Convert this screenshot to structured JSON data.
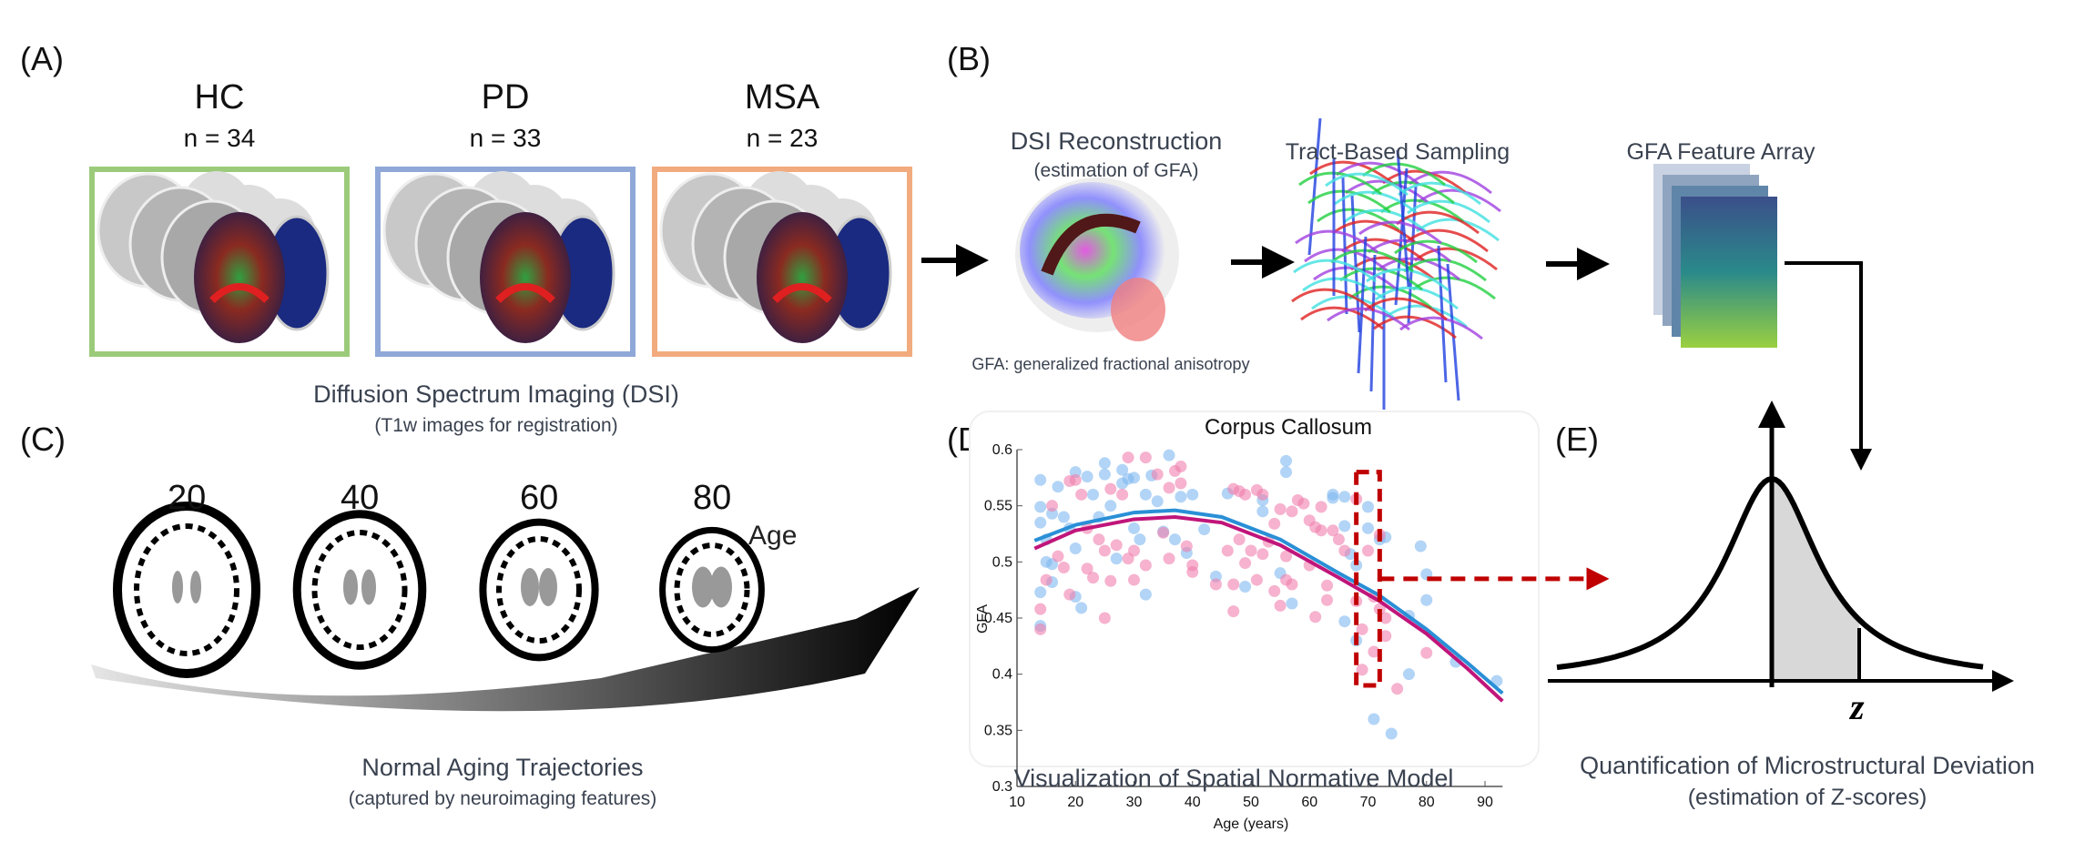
{
  "panel_labels": [
    "(A)",
    "(B)",
    "(C)",
    "(D)",
    "(E)"
  ],
  "panel_a": {
    "groups": [
      {
        "name": "HC",
        "n": "n = 34",
        "color": "#9bcb7a"
      },
      {
        "name": "PD",
        "n": "n = 33",
        "color": "#8fa8d8"
      },
      {
        "name": "MSA",
        "n": "n = 23",
        "color": "#f2ab7e"
      }
    ],
    "caption": "Diffusion Spectrum Imaging (DSI)",
    "subcaption": "(T1w images for registration)"
  },
  "panel_b": {
    "steps": [
      {
        "title": "DSI Reconstruction",
        "subtitle": "(estimation of GFA)"
      },
      {
        "title": "Tract-Based Sampling"
      },
      {
        "title": "GFA Feature Array"
      }
    ],
    "note": "GFA: generalized  fractional  anisotropy"
  },
  "panel_c": {
    "ages": [
      "20",
      "40",
      "60",
      "80"
    ],
    "age_label": "Age",
    "caption": "Normal Aging Trajectories",
    "subcaption": "(captured by neuroimaging features)"
  },
  "panel_d": {
    "caption": "Visualization of Spatial Normative Model",
    "highlight_color": "#c00000"
  },
  "panel_e": {
    "caption": "Quantification of Microstructural Deviation",
    "subcaption": "(estimation of Z-scores)",
    "z_label": "z"
  },
  "chart_data": {
    "type": "scatter",
    "title": "Corpus Callosum",
    "xlabel": "Age (years)",
    "ylabel": "GFA",
    "xlim": [
      10,
      93
    ],
    "ylim": [
      0.3,
      0.6
    ],
    "xticks": [
      10,
      20,
      30,
      40,
      50,
      60,
      70,
      80,
      90
    ],
    "yticks": [
      0.3,
      0.35,
      0.4,
      0.45,
      0.5,
      0.55,
      0.6
    ],
    "grid": false,
    "highlight_age_range": [
      68,
      72
    ],
    "series": [
      {
        "color": "#7fb8f0",
        "fit_color": "#2a8fd6",
        "points": [
          [
            14,
            0.573
          ],
          [
            14,
            0.549
          ],
          [
            14,
            0.535
          ],
          [
            14,
            0.443
          ],
          [
            14,
            0.473
          ],
          [
            15,
            0.52
          ],
          [
            15,
            0.5
          ],
          [
            16,
            0.498
          ],
          [
            16,
            0.482
          ],
          [
            16,
            0.543
          ],
          [
            17,
            0.567
          ],
          [
            18,
            0.54
          ],
          [
            19,
            0.53
          ],
          [
            20,
            0.58
          ],
          [
            20,
            0.512
          ],
          [
            20,
            0.469
          ],
          [
            21,
            0.459
          ],
          [
            22,
            0.576
          ],
          [
            23,
            0.56
          ],
          [
            24,
            0.54
          ],
          [
            25,
            0.588
          ],
          [
            25,
            0.578
          ],
          [
            26,
            0.55
          ],
          [
            27,
            0.503
          ],
          [
            28,
            0.582
          ],
          [
            28,
            0.57
          ],
          [
            29,
            0.574
          ],
          [
            30,
            0.575
          ],
          [
            30,
            0.53
          ],
          [
            31,
            0.52
          ],
          [
            32,
            0.56
          ],
          [
            32,
            0.471
          ],
          [
            33,
            0.577
          ],
          [
            34,
            0.554
          ],
          [
            35,
            0.527
          ],
          [
            36,
            0.595
          ],
          [
            37,
            0.52
          ],
          [
            38,
            0.558
          ],
          [
            39,
            0.508
          ],
          [
            40,
            0.56
          ],
          [
            42,
            0.529
          ],
          [
            44,
            0.487
          ],
          [
            46,
            0.561
          ],
          [
            49,
            0.478
          ],
          [
            52,
            0.555
          ],
          [
            52,
            0.545
          ],
          [
            55,
            0.49
          ],
          [
            56,
            0.59
          ],
          [
            56,
            0.58
          ],
          [
            57,
            0.463
          ],
          [
            64,
            0.56
          ],
          [
            64,
            0.557
          ],
          [
            66,
            0.558
          ],
          [
            66,
            0.532
          ],
          [
            66,
            0.447
          ],
          [
            67,
            0.507
          ],
          [
            68,
            0.43
          ],
          [
            68,
            0.497
          ],
          [
            70,
            0.549
          ],
          [
            70,
            0.53
          ],
          [
            71,
            0.36
          ],
          [
            72,
            0.52
          ],
          [
            73,
            0.522
          ],
          [
            74,
            0.347
          ],
          [
            77,
            0.452
          ],
          [
            77,
            0.4
          ],
          [
            79,
            0.514
          ],
          [
            80,
            0.489
          ],
          [
            80,
            0.466
          ],
          [
            85,
            0.411
          ],
          [
            92,
            0.394
          ]
        ]
      },
      {
        "color": "#f07fae",
        "fit_color": "#c0157a",
        "points": [
          [
            14,
            0.458
          ],
          [
            14,
            0.44
          ],
          [
            15,
            0.484
          ],
          [
            16,
            0.55
          ],
          [
            17,
            0.505
          ],
          [
            18,
            0.495
          ],
          [
            19,
            0.572
          ],
          [
            19,
            0.471
          ],
          [
            20,
            0.573
          ],
          [
            21,
            0.56
          ],
          [
            22,
            0.494
          ],
          [
            22,
            0.53
          ],
          [
            23,
            0.486
          ],
          [
            24,
            0.52
          ],
          [
            25,
            0.45
          ],
          [
            25,
            0.51
          ],
          [
            26,
            0.565
          ],
          [
            26,
            0.483
          ],
          [
            27,
            0.515
          ],
          [
            28,
            0.56
          ],
          [
            29,
            0.593
          ],
          [
            29,
            0.503
          ],
          [
            30,
            0.51
          ],
          [
            30,
            0.484
          ],
          [
            32,
            0.593
          ],
          [
            32,
            0.497
          ],
          [
            34,
            0.578
          ],
          [
            35,
            0.526
          ],
          [
            36,
            0.566
          ],
          [
            36,
            0.503
          ],
          [
            37,
            0.581
          ],
          [
            38,
            0.585
          ],
          [
            38,
            0.57
          ],
          [
            39,
            0.514
          ],
          [
            40,
            0.497
          ],
          [
            40,
            0.491
          ],
          [
            44,
            0.48
          ],
          [
            46,
            0.51
          ],
          [
            47,
            0.565
          ],
          [
            47,
            0.48
          ],
          [
            47,
            0.456
          ],
          [
            48,
            0.563
          ],
          [
            48,
            0.52
          ],
          [
            49,
            0.56
          ],
          [
            49,
            0.499
          ],
          [
            50,
            0.51
          ],
          [
            51,
            0.564
          ],
          [
            51,
            0.484
          ],
          [
            52,
            0.56
          ],
          [
            52,
            0.507
          ],
          [
            53,
            0.518
          ],
          [
            54,
            0.534
          ],
          [
            54,
            0.474
          ],
          [
            55,
            0.547
          ],
          [
            55,
            0.461
          ],
          [
            56,
            0.505
          ],
          [
            56,
            0.484
          ],
          [
            57,
            0.545
          ],
          [
            57,
            0.48
          ],
          [
            58,
            0.555
          ],
          [
            59,
            0.552
          ],
          [
            60,
            0.537
          ],
          [
            60,
            0.497
          ],
          [
            61,
            0.531
          ],
          [
            61,
            0.451
          ],
          [
            62,
            0.549
          ],
          [
            62,
            0.528
          ],
          [
            63,
            0.479
          ],
          [
            63,
            0.466
          ],
          [
            64,
            0.528
          ],
          [
            65,
            0.52
          ],
          [
            66,
            0.51
          ],
          [
            68,
            0.556
          ],
          [
            68,
            0.465
          ],
          [
            69,
            0.44
          ],
          [
            69,
            0.404
          ],
          [
            70,
            0.51
          ],
          [
            71,
            0.469
          ],
          [
            71,
            0.42
          ],
          [
            72,
            0.524
          ],
          [
            72,
            0.458
          ],
          [
            73,
            0.45
          ],
          [
            73,
            0.434
          ],
          [
            75,
            0.387
          ],
          [
            80,
            0.419
          ]
        ]
      }
    ],
    "fits": [
      {
        "color": "#2a8fd6",
        "points": [
          [
            13,
            0.519
          ],
          [
            20,
            0.533
          ],
          [
            30,
            0.544
          ],
          [
            37,
            0.546
          ],
          [
            45,
            0.54
          ],
          [
            55,
            0.52
          ],
          [
            65,
            0.49
          ],
          [
            72,
            0.47
          ],
          [
            80,
            0.44
          ],
          [
            87,
            0.41
          ],
          [
            93,
            0.383
          ]
        ]
      },
      {
        "color": "#c0157a",
        "points": [
          [
            13,
            0.512
          ],
          [
            20,
            0.528
          ],
          [
            30,
            0.538
          ],
          [
            37,
            0.54
          ],
          [
            45,
            0.535
          ],
          [
            55,
            0.515
          ],
          [
            65,
            0.486
          ],
          [
            72,
            0.465
          ],
          [
            80,
            0.436
          ],
          [
            87,
            0.405
          ],
          [
            93,
            0.376
          ]
        ]
      }
    ]
  }
}
